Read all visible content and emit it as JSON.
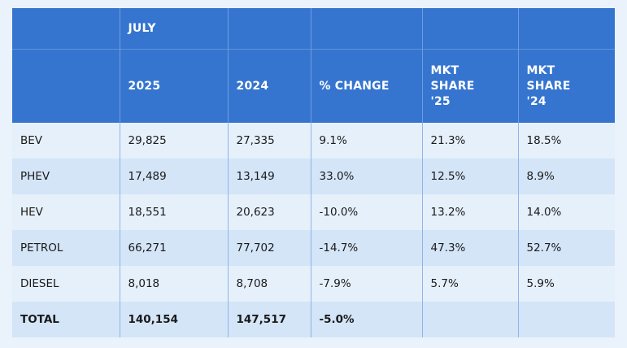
{
  "chart_data": {
    "type": "table",
    "header": {
      "group_label": "JULY",
      "columns": [
        "",
        "2025",
        "2024",
        "% CHANGE",
        "MKT SHARE '25",
        "MKT SHARE '24"
      ],
      "share_25_lines": [
        "MKT",
        "SHARE",
        "'25"
      ],
      "share_24_lines": [
        "MKT",
        "SHARE",
        "'24"
      ]
    },
    "rows": [
      {
        "label": "BEV",
        "y2025": "29,825",
        "y2024": "27,335",
        "change": "9.1%",
        "share25": "21.3%",
        "share24": "18.5%"
      },
      {
        "label": "PHEV",
        "y2025": "17,489",
        "y2024": "13,149",
        "change": "33.0%",
        "share25": "12.5%",
        "share24": "8.9%"
      },
      {
        "label": "HEV",
        "y2025": "18,551",
        "y2024": "20,623",
        "change": "-10.0%",
        "share25": "13.2%",
        "share24": "14.0%"
      },
      {
        "label": "PETROL",
        "y2025": "66,271",
        "y2024": "77,702",
        "change": "-14.7%",
        "share25": "47.3%",
        "share24": "52.7%"
      },
      {
        "label": "DIESEL",
        "y2025": "8,018",
        "y2024": "8,708",
        "change": "-7.9%",
        "share25": "5.7%",
        "share24": "5.9%"
      }
    ],
    "total": {
      "label": "TOTAL",
      "y2025": "140,154",
      "y2024": "147,517",
      "change": "-5.0%",
      "share25": "",
      "share24": ""
    },
    "colors": {
      "header": "#3575cf",
      "row_light": "#e6f0fb",
      "row_dark": "#d4e5f8",
      "background": "#eaf2fc"
    }
  }
}
